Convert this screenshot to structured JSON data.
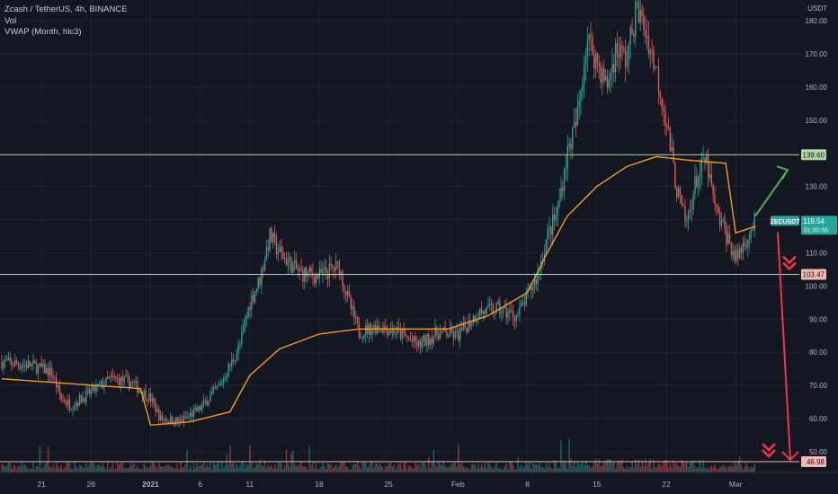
{
  "legend": {
    "symbol_line": "Zcash / TetherUS, 4h, BINANCE",
    "indicator_vol": "Vol",
    "indicator_vwap": "VWAP (Month, hlc3)"
  },
  "colors": {
    "background": "#131722",
    "grid": "#1f2430",
    "candle_up": "#26a69a",
    "candle_down": "#ef5350",
    "vwap": "#f59a23",
    "resistance": "#b2d8a4",
    "support": "#f7b7b2",
    "arrow_up": "#4caf50",
    "arrow_down": "#f23645",
    "price_badge": "#26a69a",
    "axis_text": "#b2b5be"
  },
  "chart_data": {
    "type": "candlestick",
    "symbol": "ZECUSDT",
    "timeframe": "4h",
    "exchange": "BINANCE",
    "y_axis": {
      "unit_label": "USDT",
      "ticks": [
        50,
        60,
        70,
        80,
        90,
        100,
        110,
        120,
        130,
        150,
        160,
        170,
        180
      ],
      "tick_labels": [
        "50.00",
        "60.00",
        "70.00",
        "80.00",
        "90.00",
        "100.00",
        "110.00",
        "120.00",
        "130.00",
        "150.00",
        "160.00",
        "170.00",
        "180.00"
      ],
      "range": [
        44,
        186
      ]
    },
    "x_axis": {
      "tick_labels": [
        "21",
        "26",
        "2021",
        "6",
        "11",
        "18",
        "25",
        "Feb",
        "8",
        "15",
        "22",
        "Mar"
      ]
    },
    "horizontal_levels": [
      {
        "role": "resistance",
        "value": 139.6,
        "label": "139.60"
      },
      {
        "role": "support",
        "value": 103.47,
        "label": "103.47"
      },
      {
        "role": "target",
        "value": 46.98,
        "label": "46.98"
      }
    ],
    "current_price": {
      "symbol": "ZECUSDT",
      "value": 119.54,
      "label": "119.54",
      "countdown": "01:00:56"
    },
    "price_path": [
      {
        "x": "Dec 17",
        "close": 77
      },
      {
        "x": "Dec 20",
        "close": 76
      },
      {
        "x": "Dec 22",
        "close": 74
      },
      {
        "x": "Dec 23",
        "close": 66
      },
      {
        "x": "Dec 24",
        "close": 64
      },
      {
        "x": "Dec 26",
        "close": 68
      },
      {
        "x": "Dec 28",
        "close": 72
      },
      {
        "x": "Dec 30",
        "close": 71
      },
      {
        "x": "Jan 1",
        "close": 66
      },
      {
        "x": "Jan 2",
        "close": 60
      },
      {
        "x": "Jan 4",
        "close": 59
      },
      {
        "x": "Jan 6",
        "close": 63
      },
      {
        "x": "Jan 8",
        "close": 70
      },
      {
        "x": "Jan 10",
        "close": 82
      },
      {
        "x": "Jan 11",
        "close": 95
      },
      {
        "x": "Jan 12",
        "close": 102
      },
      {
        "x": "Jan 13",
        "close": 115
      },
      {
        "x": "Jan 14",
        "close": 110
      },
      {
        "x": "Jan 16",
        "close": 104
      },
      {
        "x": "Jan 18",
        "close": 103
      },
      {
        "x": "Jan 20",
        "close": 106
      },
      {
        "x": "Jan 21",
        "close": 95
      },
      {
        "x": "Jan 22",
        "close": 86
      },
      {
        "x": "Jan 24",
        "close": 88
      },
      {
        "x": "Jan 26",
        "close": 86
      },
      {
        "x": "Jan 28",
        "close": 82
      },
      {
        "x": "Jan 30",
        "close": 86
      },
      {
        "x": "Feb 1",
        "close": 85
      },
      {
        "x": "Feb 3",
        "close": 92
      },
      {
        "x": "Feb 5",
        "close": 93
      },
      {
        "x": "Feb 7",
        "close": 91
      },
      {
        "x": "Feb 9",
        "close": 103
      },
      {
        "x": "Feb 10",
        "close": 115
      },
      {
        "x": "Feb 11",
        "close": 122
      },
      {
        "x": "Feb 12",
        "close": 140
      },
      {
        "x": "Feb 13",
        "close": 150
      },
      {
        "x": "Feb 14",
        "close": 175
      },
      {
        "x": "Feb 15",
        "close": 168
      },
      {
        "x": "Feb 16",
        "close": 160
      },
      {
        "x": "Feb 17",
        "close": 172
      },
      {
        "x": "Feb 18",
        "close": 168
      },
      {
        "x": "Feb 19",
        "close": 184
      },
      {
        "x": "Feb 20",
        "close": 176
      },
      {
        "x": "Feb 21",
        "close": 165
      },
      {
        "x": "Feb 22",
        "close": 150
      },
      {
        "x": "Feb 23",
        "close": 130
      },
      {
        "x": "Feb 24",
        "close": 118
      },
      {
        "x": "Feb 25",
        "close": 132
      },
      {
        "x": "Feb 26",
        "close": 138
      },
      {
        "x": "Feb 27",
        "close": 122
      },
      {
        "x": "Feb 28",
        "close": 116
      },
      {
        "x": "Mar 1",
        "close": 108
      },
      {
        "x": "Mar 2",
        "close": 114
      },
      {
        "x": "Mar 3",
        "close": 119.54
      }
    ],
    "vwap_path": [
      {
        "x": "Dec 17",
        "value": 72
      },
      {
        "x": "Dec 31",
        "value": 69
      },
      {
        "x": "Jan 1",
        "value": 58
      },
      {
        "x": "Jan 5",
        "value": 59
      },
      {
        "x": "Jan 9",
        "value": 62
      },
      {
        "x": "Jan 11",
        "value": 73
      },
      {
        "x": "Jan 14",
        "value": 81
      },
      {
        "x": "Jan 18",
        "value": 85.5
      },
      {
        "x": "Jan 22",
        "value": 87
      },
      {
        "x": "Jan 31",
        "value": 87
      },
      {
        "x": "Feb 1",
        "value": 88
      },
      {
        "x": "Feb 4",
        "value": 91
      },
      {
        "x": "Feb 8",
        "value": 98
      },
      {
        "x": "Feb 10",
        "value": 110
      },
      {
        "x": "Feb 12",
        "value": 121
      },
      {
        "x": "Feb 15",
        "value": 130
      },
      {
        "x": "Feb 18",
        "value": 136
      },
      {
        "x": "Feb 21",
        "value": 139
      },
      {
        "x": "Feb 24",
        "value": 138
      },
      {
        "x": "Feb 28",
        "value": 137
      },
      {
        "x": "Mar 1",
        "value": 116
      },
      {
        "x": "Mar 3",
        "value": 118
      }
    ],
    "annotations": [
      {
        "type": "arrow",
        "direction": "up",
        "from": 119.54,
        "to": 135
      },
      {
        "type": "arrow",
        "direction": "down",
        "from": 119.54,
        "to": 46.98
      },
      {
        "type": "arrow-marker",
        "direction": "down",
        "near": 103.47
      },
      {
        "type": "arrow-marker",
        "direction": "down",
        "near": 46.98
      }
    ],
    "volume_panel": true,
    "grid": true
  }
}
